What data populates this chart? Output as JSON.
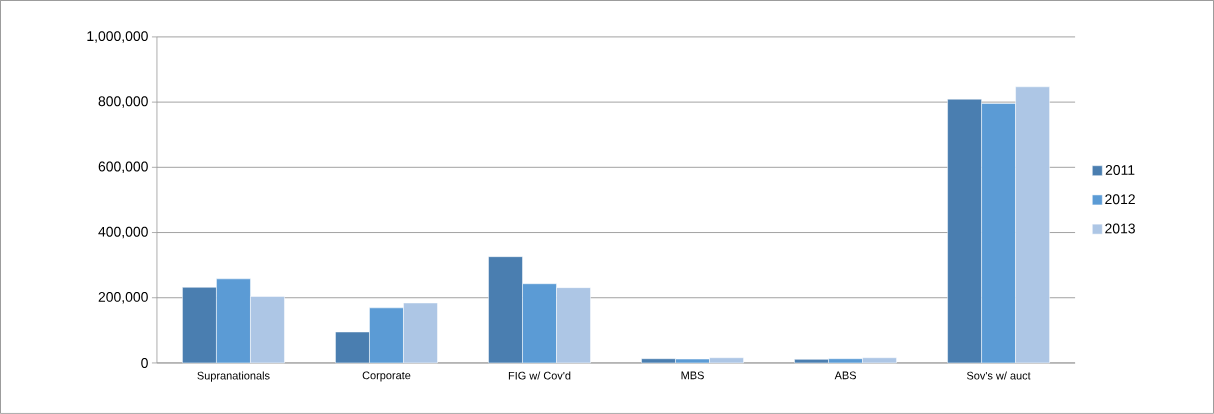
{
  "chart_data": {
    "type": "bar",
    "categories": [
      "Supranationals",
      "Corporate",
      "FIG w/ Cov'd",
      "MBS",
      "ABS",
      "Sov's w/ auct"
    ],
    "series": [
      {
        "name": "2011",
        "color": "#4a7eb0",
        "values": [
          232000,
          95000,
          326000,
          13000,
          11000,
          809000
        ]
      },
      {
        "name": "2012",
        "color": "#5b9bd5",
        "values": [
          258000,
          169000,
          243000,
          12000,
          13000,
          796000
        ]
      },
      {
        "name": "2013",
        "color": "#adc6e5",
        "values": [
          204000,
          184000,
          231000,
          16000,
          16000,
          847000
        ]
      }
    ],
    "ylim": [
      0,
      1000000
    ],
    "yticks": [
      {
        "value": 0,
        "label": "0"
      },
      {
        "value": 200000,
        "label": "200,000"
      },
      {
        "value": 400000,
        "label": "400,000"
      },
      {
        "value": 600000,
        "label": "600,000"
      },
      {
        "value": 800000,
        "label": "800,000"
      },
      {
        "value": 1000000,
        "label": "1,000,000"
      }
    ],
    "grid": "y",
    "legend": "right"
  }
}
